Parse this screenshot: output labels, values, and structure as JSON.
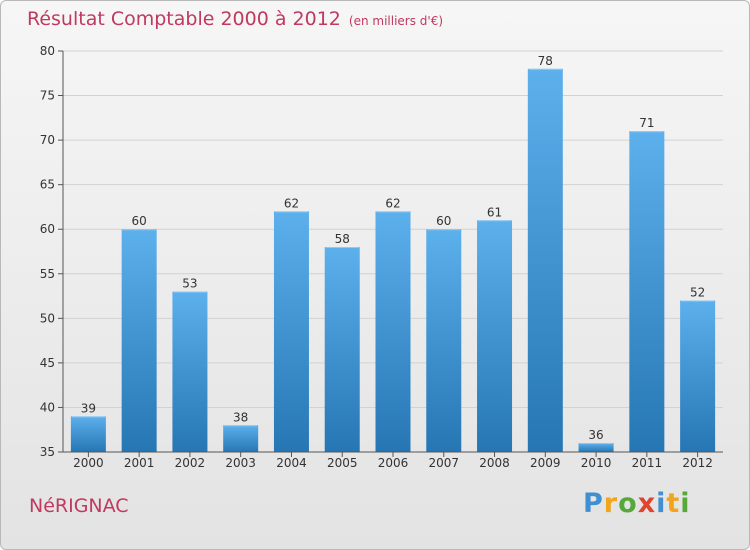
{
  "chart_data": {
    "type": "bar",
    "title": "Résultat Comptable 2000 à 2012",
    "subtitle": "(en milliers d'€)",
    "categories": [
      "2000",
      "2001",
      "2002",
      "2003",
      "2004",
      "2005",
      "2006",
      "2007",
      "2008",
      "2009",
      "2010",
      "2011",
      "2012"
    ],
    "values": [
      39,
      60,
      53,
      38,
      62,
      58,
      62,
      60,
      61,
      78,
      36,
      71,
      52
    ],
    "ylim": [
      35,
      80
    ],
    "yticks": [
      35,
      40,
      45,
      50,
      55,
      60,
      65,
      70,
      75,
      80
    ],
    "xlabel": "",
    "ylabel": "",
    "grid": true,
    "bar_color": "#3d8fd6"
  },
  "location": "NéRIGNAC",
  "logo": {
    "text": "Proxiti",
    "letters": [
      "P",
      "r",
      "o",
      "x",
      "i",
      "t",
      "i"
    ],
    "colors": [
      "#3f8fd1",
      "#f2a51c",
      "#56a83a",
      "#e2432e",
      "#3f8fd1",
      "#f2a51c",
      "#56a83a"
    ]
  },
  "colors": {
    "title": "#c0395f",
    "bar_top": "#5cb0ec",
    "bar_bottom": "#2676b4"
  }
}
